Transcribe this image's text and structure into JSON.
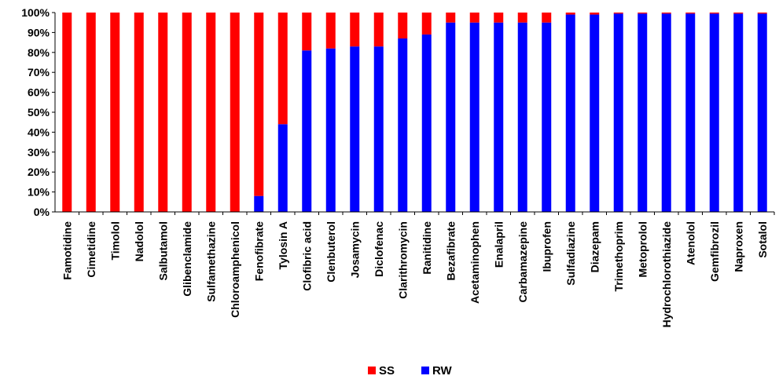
{
  "chart_data": {
    "type": "bar",
    "stacked": true,
    "percent": true,
    "categories": [
      "Famotidine",
      "Cimetidine",
      "Timolol",
      "Nadolol",
      "Salbutamol",
      "Glibenclamide",
      "Sulfamethazine",
      "Chloroamphenicol",
      "Fenofibrate",
      "Tylosin A",
      "Clofibric acid",
      "Clenbuterol",
      "Josamycin",
      "Diclofenac",
      "Clarithromycin",
      "Ranitidine",
      "Bezafibrate",
      "Acetaminophen",
      "Enalapril",
      "Carbamazepine",
      "Ibuprofen",
      "Sulfadiazine",
      "Diazepam",
      "Trimethoprim",
      "Metoprolol",
      "Hydrochlorothiazide",
      "Atenolol",
      "Gemfibrozil",
      "Naproxen",
      "Sotalol"
    ],
    "series": [
      {
        "name": "RW",
        "color": "#0000ff",
        "values": [
          0,
          0,
          0,
          0,
          0,
          0,
          0,
          0,
          8,
          44,
          81,
          82,
          83,
          83,
          87,
          89,
          95,
          95,
          95,
          95,
          95,
          99,
          99,
          99.5,
          99.5,
          99.5,
          99.5,
          99.5,
          99.5,
          99.5
        ]
      },
      {
        "name": "SS",
        "color": "#ff0000",
        "values": [
          100,
          100,
          100,
          100,
          100,
          100,
          100,
          100,
          92,
          56,
          19,
          18,
          17,
          17,
          13,
          11,
          5,
          5,
          5,
          5,
          5,
          1,
          1,
          0.5,
          0.5,
          0.5,
          0.5,
          0.5,
          0.5,
          0.5
        ]
      }
    ],
    "legend_order": [
      "SS",
      "RW"
    ],
    "ylim": [
      0,
      100
    ],
    "yticks": [
      "0%",
      "10%",
      "20%",
      "30%",
      "40%",
      "50%",
      "60%",
      "70%",
      "80%",
      "90%",
      "100%"
    ],
    "legend_position": "bottom",
    "grid": false
  }
}
